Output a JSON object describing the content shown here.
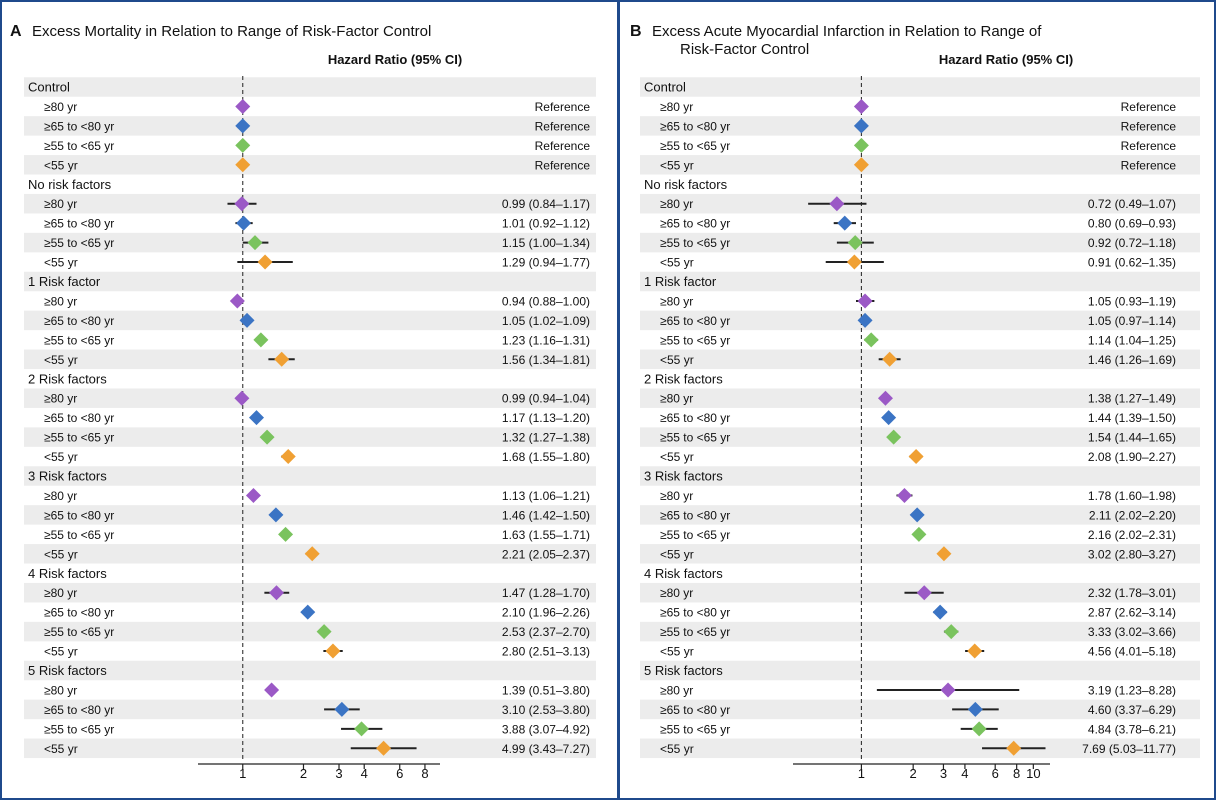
{
  "colors": {
    "purple": "#9b59c6",
    "blue": "#3b74c4",
    "green": "#7ac35e",
    "orange": "#f0a033",
    "row_shade": "#ececec",
    "frame": "#1f4a8c"
  },
  "chart_data": [
    {
      "type": "forest",
      "panel_letter": "A",
      "title_lines": [
        "Excess Mortality in Relation to Range of Risk-Factor Control"
      ],
      "column_header": "Hazard Ratio (95% CI)",
      "x_scale": "log",
      "xlim": [
        0.6,
        9.5
      ],
      "x_ticks": [
        {
          "value": 1,
          "label": "1"
        },
        {
          "value": 2,
          "label": "2"
        },
        {
          "value": 3,
          "label": "3"
        },
        {
          "value": 4,
          "label": "4"
        },
        {
          "value": 6,
          "label": "6"
        },
        {
          "value": 8,
          "label": "8"
        }
      ],
      "reference_line": 1,
      "groups": [
        {
          "label": "Control",
          "rows": [
            {
              "label": "≥80 yr",
              "hr": 1,
              "lo": null,
              "hi": null,
              "text": "Reference",
              "color": "purple"
            },
            {
              "label": "≥65 to <80 yr",
              "hr": 1,
              "lo": null,
              "hi": null,
              "text": "Reference",
              "color": "blue"
            },
            {
              "label": "≥55 to <65 yr",
              "hr": 1,
              "lo": null,
              "hi": null,
              "text": "Reference",
              "color": "green"
            },
            {
              "label": "<55 yr",
              "hr": 1,
              "lo": null,
              "hi": null,
              "text": "Reference",
              "color": "orange"
            }
          ]
        },
        {
          "label": "No risk factors",
          "rows": [
            {
              "label": "≥80 yr",
              "hr": 0.99,
              "lo": 0.84,
              "hi": 1.17,
              "text": "0.99 (0.84–1.17)",
              "color": "purple"
            },
            {
              "label": "≥65 to <80 yr",
              "hr": 1.01,
              "lo": 0.92,
              "hi": 1.12,
              "text": "1.01 (0.92–1.12)",
              "color": "blue"
            },
            {
              "label": "≥55 to <65 yr",
              "hr": 1.15,
              "lo": 1.0,
              "hi": 1.34,
              "text": "1.15 (1.00–1.34)",
              "color": "green"
            },
            {
              "label": "<55 yr",
              "hr": 1.29,
              "lo": 0.94,
              "hi": 1.77,
              "text": "1.29 (0.94–1.77)",
              "color": "orange"
            }
          ]
        },
        {
          "label": "1 Risk factor",
          "rows": [
            {
              "label": "≥80 yr",
              "hr": 0.94,
              "lo": 0.88,
              "hi": 1.0,
              "text": "0.94 (0.88–1.00)",
              "color": "purple"
            },
            {
              "label": "≥65 to <80 yr",
              "hr": 1.05,
              "lo": 1.02,
              "hi": 1.09,
              "text": "1.05 (1.02–1.09)",
              "color": "blue"
            },
            {
              "label": "≥55 to <65 yr",
              "hr": 1.23,
              "lo": 1.16,
              "hi": 1.31,
              "text": "1.23 (1.16–1.31)",
              "color": "green"
            },
            {
              "label": "<55 yr",
              "hr": 1.56,
              "lo": 1.34,
              "hi": 1.81,
              "text": "1.56 (1.34–1.81)",
              "color": "orange"
            }
          ]
        },
        {
          "label": "2 Risk factors",
          "rows": [
            {
              "label": "≥80 yr",
              "hr": 0.99,
              "lo": 0.94,
              "hi": 1.04,
              "text": "0.99 (0.94–1.04)",
              "color": "purple"
            },
            {
              "label": "≥65 to <80 yr",
              "hr": 1.17,
              "lo": 1.13,
              "hi": 1.2,
              "text": "1.17 (1.13–1.20)",
              "color": "blue"
            },
            {
              "label": "≥55 to <65 yr",
              "hr": 1.32,
              "lo": 1.27,
              "hi": 1.38,
              "text": "1.32 (1.27–1.38)",
              "color": "green"
            },
            {
              "label": "<55 yr",
              "hr": 1.68,
              "lo": 1.55,
              "hi": 1.8,
              "text": "1.68 (1.55–1.80)",
              "color": "orange"
            }
          ]
        },
        {
          "label": "3 Risk factors",
          "rows": [
            {
              "label": "≥80 yr",
              "hr": 1.13,
              "lo": 1.06,
              "hi": 1.21,
              "text": "1.13 (1.06–1.21)",
              "color": "purple"
            },
            {
              "label": "≥65 to <80 yr",
              "hr": 1.46,
              "lo": 1.42,
              "hi": 1.5,
              "text": "1.46 (1.42–1.50)",
              "color": "blue"
            },
            {
              "label": "≥55 to <65 yr",
              "hr": 1.63,
              "lo": 1.55,
              "hi": 1.71,
              "text": "1.63 (1.55–1.71)",
              "color": "green"
            },
            {
              "label": "<55 yr",
              "hr": 2.21,
              "lo": 2.05,
              "hi": 2.37,
              "text": "2.21 (2.05–2.37)",
              "color": "orange"
            }
          ]
        },
        {
          "label": "4 Risk factors",
          "rows": [
            {
              "label": "≥80 yr",
              "hr": 1.47,
              "lo": 1.28,
              "hi": 1.7,
              "text": "1.47 (1.28–1.70)",
              "color": "purple"
            },
            {
              "label": "≥65 to <80 yr",
              "hr": 2.1,
              "lo": 1.96,
              "hi": 2.26,
              "text": "2.10 (1.96–2.26)",
              "color": "blue"
            },
            {
              "label": "≥55 to <65 yr",
              "hr": 2.53,
              "lo": 2.37,
              "hi": 2.7,
              "text": "2.53 (2.37–2.70)",
              "color": "green"
            },
            {
              "label": "<55 yr",
              "hr": 2.8,
              "lo": 2.51,
              "hi": 3.13,
              "text": "2.80 (2.51–3.13)",
              "color": "orange"
            }
          ]
        },
        {
          "label": "5 Risk factors",
          "rows": [
            {
              "label": "≥80 yr",
              "hr": 1.39,
              "lo": 0.51,
              "hi": 3.8,
              "text": "1.39 (0.51–3.80)",
              "color": "purple",
              "ci_hidden": true
            },
            {
              "label": "≥65 to <80 yr",
              "hr": 3.1,
              "lo": 2.53,
              "hi": 3.8,
              "text": "3.10 (2.53–3.80)",
              "color": "blue"
            },
            {
              "label": "≥55 to <65 yr",
              "hr": 3.88,
              "lo": 3.07,
              "hi": 4.92,
              "text": "3.88 (3.07–4.92)",
              "color": "green"
            },
            {
              "label": "<55 yr",
              "hr": 4.99,
              "lo": 3.43,
              "hi": 7.27,
              "text": "4.99 (3.43–7.27)",
              "color": "orange"
            }
          ]
        }
      ]
    },
    {
      "type": "forest",
      "panel_letter": "B",
      "title_lines": [
        "Excess Acute Myocardial Infarction in Relation to Range of",
        "Risk-Factor Control"
      ],
      "column_header": "Hazard Ratio (95% CI)",
      "x_scale": "log",
      "xlim": [
        0.4,
        12.5
      ],
      "x_ticks": [
        {
          "value": 1,
          "label": "1"
        },
        {
          "value": 2,
          "label": "2"
        },
        {
          "value": 3,
          "label": "3"
        },
        {
          "value": 4,
          "label": "4"
        },
        {
          "value": 6,
          "label": "6"
        },
        {
          "value": 8,
          "label": "8"
        },
        {
          "value": 10,
          "label": "10"
        }
      ],
      "reference_line": 1,
      "groups": [
        {
          "label": "Control",
          "rows": [
            {
              "label": "≥80 yr",
              "hr": 1,
              "lo": null,
              "hi": null,
              "text": "Reference",
              "color": "purple"
            },
            {
              "label": "≥65 to <80 yr",
              "hr": 1,
              "lo": null,
              "hi": null,
              "text": "Reference",
              "color": "blue"
            },
            {
              "label": "≥55 to <65 yr",
              "hr": 1,
              "lo": null,
              "hi": null,
              "text": "Reference",
              "color": "green"
            },
            {
              "label": "<55 yr",
              "hr": 1,
              "lo": null,
              "hi": null,
              "text": "Reference",
              "color": "orange"
            }
          ]
        },
        {
          "label": "No risk factors",
          "rows": [
            {
              "label": "≥80 yr",
              "hr": 0.72,
              "lo": 0.49,
              "hi": 1.07,
              "text": "0.72 (0.49–1.07)",
              "color": "purple"
            },
            {
              "label": "≥65 to <80 yr",
              "hr": 0.8,
              "lo": 0.69,
              "hi": 0.93,
              "text": "0.80 (0.69–0.93)",
              "color": "blue"
            },
            {
              "label": "≥55 to <65 yr",
              "hr": 0.92,
              "lo": 0.72,
              "hi": 1.18,
              "text": "0.92 (0.72–1.18)",
              "color": "green"
            },
            {
              "label": "<55 yr",
              "hr": 0.91,
              "lo": 0.62,
              "hi": 1.35,
              "text": "0.91 (0.62–1.35)",
              "color": "orange"
            }
          ]
        },
        {
          "label": "1 Risk factor",
          "rows": [
            {
              "label": "≥80 yr",
              "hr": 1.05,
              "lo": 0.93,
              "hi": 1.19,
              "text": "1.05 (0.93–1.19)",
              "color": "purple"
            },
            {
              "label": "≥65 to <80 yr",
              "hr": 1.05,
              "lo": 0.97,
              "hi": 1.14,
              "text": "1.05 (0.97–1.14)",
              "color": "blue"
            },
            {
              "label": "≥55 to <65 yr",
              "hr": 1.14,
              "lo": 1.04,
              "hi": 1.25,
              "text": "1.14 (1.04–1.25)",
              "color": "green"
            },
            {
              "label": "<55 yr",
              "hr": 1.46,
              "lo": 1.26,
              "hi": 1.69,
              "text": "1.46 (1.26–1.69)",
              "color": "orange"
            }
          ]
        },
        {
          "label": "2 Risk factors",
          "rows": [
            {
              "label": "≥80 yr",
              "hr": 1.38,
              "lo": 1.27,
              "hi": 1.49,
              "text": "1.38 (1.27–1.49)",
              "color": "purple"
            },
            {
              "label": "≥65 to <80 yr",
              "hr": 1.44,
              "lo": 1.39,
              "hi": 1.5,
              "text": "1.44 (1.39–1.50)",
              "color": "blue"
            },
            {
              "label": "≥55 to <65 yr",
              "hr": 1.54,
              "lo": 1.44,
              "hi": 1.65,
              "text": "1.54 (1.44–1.65)",
              "color": "green"
            },
            {
              "label": "<55 yr",
              "hr": 2.08,
              "lo": 1.9,
              "hi": 2.27,
              "text": "2.08 (1.90–2.27)",
              "color": "orange"
            }
          ]
        },
        {
          "label": "3 Risk factors",
          "rows": [
            {
              "label": "≥80 yr",
              "hr": 1.78,
              "lo": 1.6,
              "hi": 1.98,
              "text": "1.78 (1.60–1.98)",
              "color": "purple"
            },
            {
              "label": "≥65 to <80 yr",
              "hr": 2.11,
              "lo": 2.02,
              "hi": 2.2,
              "text": "2.11 (2.02–2.20)",
              "color": "blue"
            },
            {
              "label": "≥55 to <65 yr",
              "hr": 2.16,
              "lo": 2.02,
              "hi": 2.31,
              "text": "2.16 (2.02–2.31)",
              "color": "green"
            },
            {
              "label": "<55 yr",
              "hr": 3.02,
              "lo": 2.8,
              "hi": 3.27,
              "text": "3.02 (2.80–3.27)",
              "color": "orange"
            }
          ]
        },
        {
          "label": "4 Risk factors",
          "rows": [
            {
              "label": "≥80 yr",
              "hr": 2.32,
              "lo": 1.78,
              "hi": 3.01,
              "text": "2.32 (1.78–3.01)",
              "color": "purple"
            },
            {
              "label": "≥65 to <80 yr",
              "hr": 2.87,
              "lo": 2.62,
              "hi": 3.14,
              "text": "2.87 (2.62–3.14)",
              "color": "blue"
            },
            {
              "label": "≥55 to <65 yr",
              "hr": 3.33,
              "lo": 3.02,
              "hi": 3.66,
              "text": "3.33 (3.02–3.66)",
              "color": "green"
            },
            {
              "label": "<55 yr",
              "hr": 4.56,
              "lo": 4.01,
              "hi": 5.18,
              "text": "4.56 (4.01–5.18)",
              "color": "orange"
            }
          ]
        },
        {
          "label": "5 Risk factors",
          "rows": [
            {
              "label": "≥80 yr",
              "hr": 3.19,
              "lo": 1.23,
              "hi": 8.28,
              "text": "3.19 (1.23–8.28)",
              "color": "purple"
            },
            {
              "label": "≥65 to <80 yr",
              "hr": 4.6,
              "lo": 3.37,
              "hi": 6.29,
              "text": "4.60 (3.37–6.29)",
              "color": "blue"
            },
            {
              "label": "≥55 to <65 yr",
              "hr": 4.84,
              "lo": 3.78,
              "hi": 6.21,
              "text": "4.84 (3.78–6.21)",
              "color": "green"
            },
            {
              "label": "<55 yr",
              "hr": 7.69,
              "lo": 5.03,
              "hi": 11.77,
              "text": "7.69 (5.03–11.77)",
              "color": "orange"
            }
          ]
        }
      ]
    }
  ]
}
